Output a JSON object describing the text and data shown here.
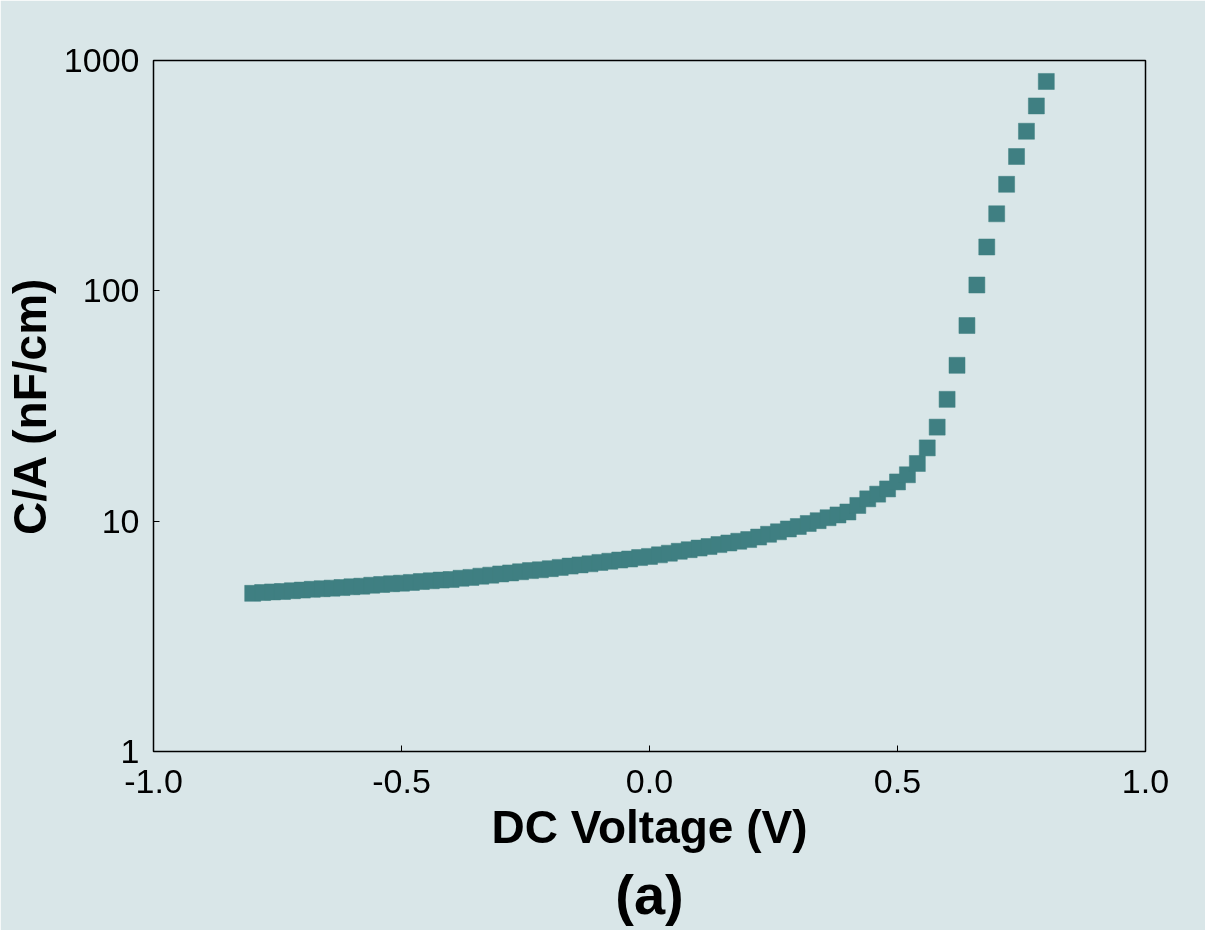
{
  "chart_data": {
    "type": "scatter",
    "xlabel": "DC Voltage (V)",
    "ylabel": "C/A (nF/cm)",
    "annotations": [
      "(a)"
    ],
    "log": "y",
    "marker": "square",
    "grid": false,
    "xlim": [
      -1.0,
      1.0
    ],
    "xticks": [
      {
        "value": -1.0,
        "label": "-1.0"
      },
      {
        "value": -0.5,
        "label": "-0.5"
      },
      {
        "value": 0.0,
        "label": "0.0"
      },
      {
        "value": 0.5,
        "label": "0.5"
      },
      {
        "value": 1.0,
        "label": "1.0"
      }
    ],
    "ylim": [
      1,
      1000
    ],
    "yticks": [
      1,
      10,
      100,
      1000
    ],
    "series": [
      {
        "color": "#3f7f82",
        "x": [
          -0.8,
          -0.78,
          -0.76,
          -0.74,
          -0.72,
          -0.7,
          -0.68,
          -0.66,
          -0.64,
          -0.62,
          -0.6,
          -0.58,
          -0.56,
          -0.54,
          -0.52,
          -0.5,
          -0.48,
          -0.46,
          -0.44,
          -0.42,
          -0.4,
          -0.38,
          -0.36,
          -0.34,
          -0.32,
          -0.3,
          -0.28,
          -0.26,
          -0.24,
          -0.22,
          -0.2,
          -0.18,
          -0.16,
          -0.14,
          -0.12,
          -0.1,
          -0.08,
          -0.06,
          -0.04,
          -0.02,
          0.0,
          0.02,
          0.04,
          0.06,
          0.08,
          0.1,
          0.12,
          0.14,
          0.16,
          0.18,
          0.2,
          0.22,
          0.24,
          0.26,
          0.28,
          0.3,
          0.32,
          0.34,
          0.36,
          0.38,
          0.4,
          0.42,
          0.44,
          0.46,
          0.48,
          0.5,
          0.52,
          0.54,
          0.56,
          0.58,
          0.6,
          0.62,
          0.64,
          0.66,
          0.68,
          0.7,
          0.72,
          0.74,
          0.76,
          0.78,
          0.8
        ],
        "values": [
          4.86,
          4.9,
          4.93,
          4.95,
          4.99,
          5.02,
          5.06,
          5.09,
          5.12,
          5.15,
          5.19,
          5.22,
          5.27,
          5.31,
          5.35,
          5.38,
          5.42,
          5.47,
          5.51,
          5.55,
          5.58,
          5.65,
          5.7,
          5.77,
          5.83,
          5.9,
          5.96,
          6.03,
          6.1,
          6.15,
          6.22,
          6.3,
          6.38,
          6.46,
          6.53,
          6.62,
          6.7,
          6.78,
          6.85,
          6.95,
          7.03,
          7.14,
          7.26,
          7.4,
          7.52,
          7.64,
          7.76,
          7.91,
          8.04,
          8.18,
          8.32,
          8.53,
          8.77,
          8.99,
          9.25,
          9.48,
          9.77,
          10.05,
          10.35,
          10.64,
          10.96,
          11.7,
          12.5,
          13.1,
          13.8,
          14.8,
          15.9,
          17.8,
          20.8,
          25.6,
          33.8,
          47.5,
          70.7,
          106,
          155,
          216,
          290,
          383,
          493,
          635,
          811
        ]
      }
    ]
  }
}
